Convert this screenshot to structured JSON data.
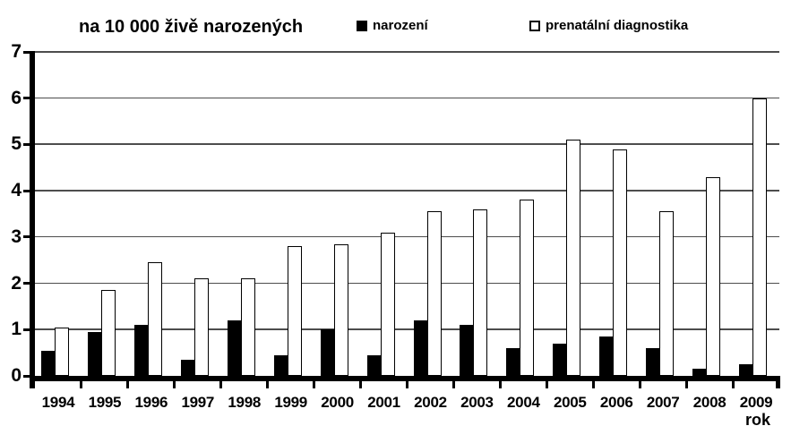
{
  "colors": {
    "background": "#ffffff",
    "axis": "#000000",
    "gridline": "#4d4d4d",
    "bar_filled": "#000000",
    "bar_open_fill": "#ffffff",
    "bar_open_border": "#000000",
    "text": "#000000"
  },
  "chart_data": {
    "type": "bar",
    "title": "na 10 000 živě narozených",
    "xlabel": "rok",
    "ylabel": "",
    "ylim": [
      0,
      7
    ],
    "y_ticks": [
      0,
      1,
      2,
      3,
      4,
      5,
      6,
      7
    ],
    "grid": true,
    "legend_position": "top",
    "categories": [
      "1994",
      "1995",
      "1996",
      "1997",
      "1998",
      "1999",
      "2000",
      "2001",
      "2002",
      "2003",
      "2004",
      "2005",
      "2006",
      "2007",
      "2008",
      "2009"
    ],
    "series": [
      {
        "name": "narození",
        "style": "filled-black",
        "values": [
          0.55,
          0.95,
          1.1,
          0.35,
          1.2,
          0.45,
          1.0,
          0.45,
          1.2,
          1.1,
          0.6,
          0.7,
          0.85,
          0.6,
          0.15,
          0.25
        ]
      },
      {
        "name": "prenatální diagnostika",
        "style": "open-white",
        "values": [
          1.05,
          1.85,
          2.45,
          2.1,
          2.1,
          2.8,
          2.85,
          3.1,
          3.55,
          3.6,
          3.8,
          5.1,
          4.9,
          3.55,
          4.3,
          6.0
        ]
      }
    ]
  }
}
